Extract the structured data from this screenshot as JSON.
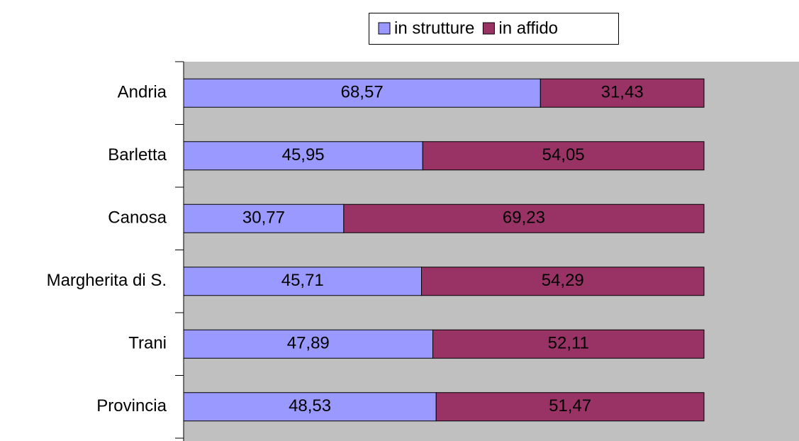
{
  "chart_data": {
    "type": "bar",
    "orientation": "horizontal",
    "stacked": true,
    "categories": [
      "Andria",
      "Barletta",
      "Canosa",
      "Margherita di S.",
      "Trani",
      "Provincia"
    ],
    "series": [
      {
        "name": "in strutture",
        "color": "#9999ff",
        "values": [
          68.57,
          45.95,
          30.77,
          45.71,
          47.89,
          48.53
        ],
        "value_labels": [
          "68,57",
          "45,95",
          "30,77",
          "45,71",
          "47,89",
          "48,53"
        ]
      },
      {
        "name": "in affido",
        "color": "#993366",
        "values": [
          31.43,
          54.05,
          69.23,
          54.29,
          52.11,
          51.47
        ],
        "value_labels": [
          "31,43",
          "54,05",
          "69,23",
          "54,29",
          "52,11",
          "51,47"
        ]
      }
    ],
    "xlim": [
      0,
      100
    ],
    "legend": "top"
  }
}
